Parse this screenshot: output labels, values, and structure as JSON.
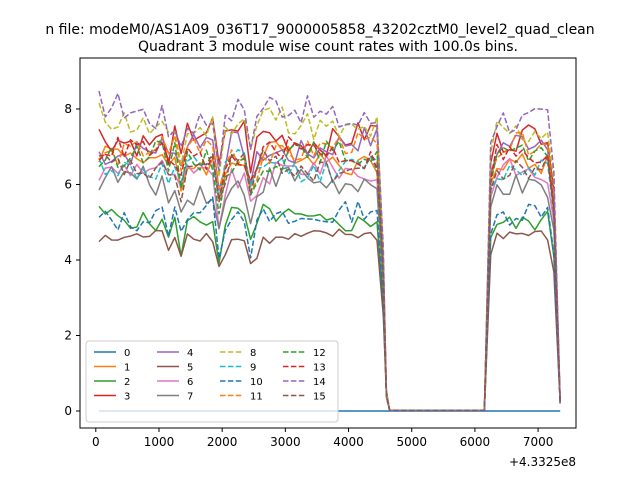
{
  "figure": {
    "suptitle": "n file: modeM0/AS1A09_036T17_9000005858_43202cztM0_level2_quad_clean"
  },
  "chart_data": {
    "type": "line",
    "title": "Quadrant 3 module wise count rates with 100.0s bins.",
    "xlabel": "",
    "ylabel": "",
    "x_offset_label": "+4.3325e8",
    "xlim": [
      -250,
      7600
    ],
    "ylim": [
      -0.45,
      9.35
    ],
    "xticks": [
      0,
      1000,
      2000,
      3000,
      4000,
      5000,
      6000,
      7000
    ],
    "yticks": [
      0,
      2,
      4,
      6,
      8
    ],
    "xtick_labels": [
      "0",
      "1000",
      "2000",
      "3000",
      "4000",
      "5000",
      "6000",
      "7000"
    ],
    "ytick_labels": [
      "0",
      "2",
      "4",
      "6",
      "8"
    ],
    "legend": {
      "placement": "lower-left",
      "columns": 4
    },
    "x": [
      50,
      150,
      250,
      350,
      450,
      550,
      650,
      750,
      850,
      950,
      1050,
      1150,
      1250,
      1350,
      1450,
      1550,
      1650,
      1750,
      1850,
      1950,
      2050,
      2150,
      2250,
      2350,
      2450,
      2550,
      2650,
      2750,
      2850,
      2950,
      3050,
      3150,
      3250,
      3350,
      3450,
      3550,
      3650,
      3750,
      3850,
      3950,
      4050,
      4150,
      4250,
      4350,
      4450,
      4550,
      4600,
      4650,
      4700,
      6150,
      6250,
      6350,
      6450,
      6550,
      6650,
      6750,
      6850,
      6950,
      7050,
      7150,
      7250,
      7350
    ],
    "series": [
      {
        "name": "0",
        "color": "#1f77b4",
        "dashed": false,
        "base": 0,
        "amp": 0
      },
      {
        "name": "1",
        "color": "#ff7f0e",
        "dashed": false,
        "base": 6.7,
        "amp": 0.3
      },
      {
        "name": "2",
        "color": "#2ca02c",
        "dashed": false,
        "base": 5.1,
        "amp": 0.25
      },
      {
        "name": "3",
        "color": "#d62728",
        "dashed": false,
        "base": 7.3,
        "amp": 0.35
      },
      {
        "name": "4",
        "color": "#9467bd",
        "dashed": false,
        "base": 7.0,
        "amp": 0.35
      },
      {
        "name": "5",
        "color": "#8c564b",
        "dashed": false,
        "base": 4.6,
        "amp": 0.15
      },
      {
        "name": "6",
        "color": "#e377c2",
        "dashed": false,
        "base": 6.3,
        "amp": 0.3
      },
      {
        "name": "7",
        "color": "#7f7f7f",
        "dashed": false,
        "base": 6.0,
        "amp": 0.35
      },
      {
        "name": "8",
        "color": "#bcbd22",
        "dashed": true,
        "base": 7.6,
        "amp": 0.4
      },
      {
        "name": "9",
        "color": "#17becf",
        "dashed": true,
        "base": 6.5,
        "amp": 0.3
      },
      {
        "name": "10",
        "color": "#1f77b4",
        "dashed": true,
        "base": 5.2,
        "amp": 0.3
      },
      {
        "name": "11",
        "color": "#ff7f0e",
        "dashed": true,
        "base": 6.9,
        "amp": 0.3
      },
      {
        "name": "12",
        "color": "#2ca02c",
        "dashed": true,
        "base": 6.7,
        "amp": 0.3
      },
      {
        "name": "13",
        "color": "#d62728",
        "dashed": true,
        "base": 6.8,
        "amp": 0.3
      },
      {
        "name": "14",
        "color": "#9467bd",
        "dashed": true,
        "base": 7.9,
        "amp": 0.4
      },
      {
        "name": "15",
        "color": "#8c564b",
        "dashed": true,
        "base": 6.5,
        "amp": 0.3
      }
    ]
  }
}
